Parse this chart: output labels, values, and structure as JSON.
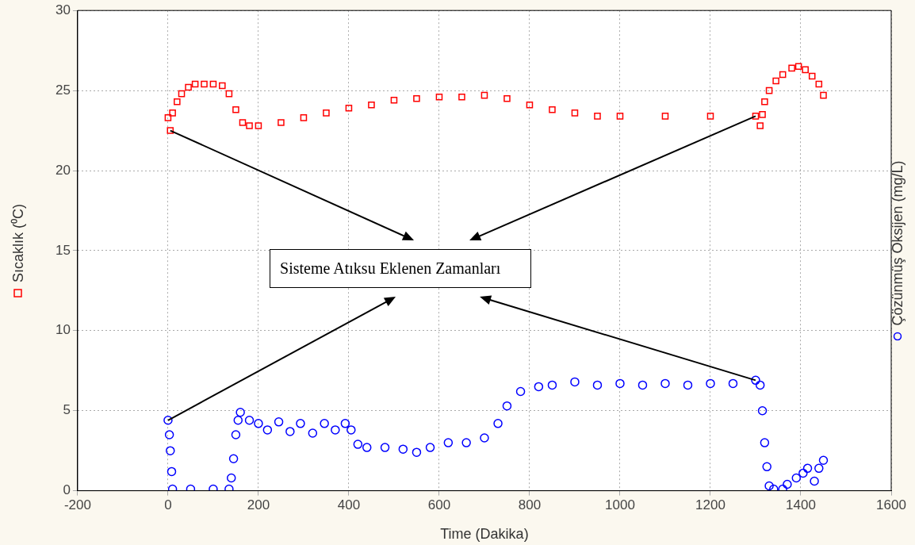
{
  "chart_data": {
    "type": "scatter",
    "xlabel": "Time (Dakika)",
    "ylabel": "Sıcaklık (⁰C)",
    "y2label": "Çözünmüş Oksijen (mg/L)",
    "annotations": [
      "Sisteme Atıksu Eklenen Zamanları"
    ],
    "xlim": [
      -200,
      1600
    ],
    "xticks": [
      -200,
      0,
      200,
      400,
      600,
      800,
      1000,
      1200,
      1400,
      1600
    ],
    "ylim": [
      0,
      30
    ],
    "yticks": [
      0,
      5,
      10,
      15,
      20,
      25,
      30
    ],
    "grid": true,
    "series": [
      {
        "color": "#ff0000",
        "marker": "square",
        "x": [
          0,
          5,
          10,
          20,
          30,
          45,
          60,
          80,
          100,
          120,
          135,
          150,
          165,
          180,
          200,
          250,
          300,
          350,
          400,
          450,
          500,
          550,
          600,
          650,
          700,
          750,
          800,
          850,
          900,
          950,
          1000,
          1100,
          1200,
          1300,
          1310,
          1315,
          1320,
          1330,
          1345,
          1360,
          1380,
          1395,
          1410,
          1425,
          1440,
          1450
        ],
        "values": [
          23.3,
          22.5,
          23.6,
          24.3,
          24.8,
          25.2,
          25.4,
          25.4,
          25.4,
          25.3,
          24.8,
          23.8,
          23.0,
          22.8,
          22.8,
          23.0,
          23.3,
          23.6,
          23.9,
          24.1,
          24.4,
          24.5,
          24.6,
          24.6,
          24.7,
          24.5,
          24.1,
          23.8,
          23.6,
          23.4,
          23.4,
          23.4,
          23.4,
          23.4,
          22.8,
          23.5,
          24.3,
          25.0,
          25.6,
          26.0,
          26.4,
          26.5,
          26.3,
          25.9,
          25.4,
          24.7
        ]
      },
      {
        "color": "#0000ff",
        "marker": "circle",
        "x": [
          0,
          3,
          5,
          8,
          10,
          50,
          100,
          135,
          140,
          145,
          150,
          155,
          160,
          180,
          200,
          220,
          245,
          270,
          293,
          320,
          346,
          370,
          392,
          405,
          420,
          440,
          480,
          520,
          550,
          580,
          620,
          660,
          700,
          730,
          750,
          780,
          820,
          850,
          900,
          950,
          1000,
          1050,
          1100,
          1150,
          1200,
          1250,
          1300,
          1310,
          1315,
          1320,
          1325,
          1330,
          1340,
          1360,
          1370,
          1390,
          1405,
          1415,
          1430,
          1440,
          1450
        ],
        "values": [
          4.4,
          3.5,
          2.5,
          1.2,
          0.1,
          0.1,
          0.1,
          0.1,
          0.8,
          2.0,
          3.5,
          4.4,
          4.9,
          4.4,
          4.2,
          3.8,
          4.3,
          3.7,
          4.2,
          3.6,
          4.2,
          3.8,
          4.2,
          3.8,
          2.9,
          2.7,
          2.7,
          2.6,
          2.4,
          2.7,
          3.0,
          3.0,
          3.3,
          4.2,
          5.3,
          6.2,
          6.5,
          6.6,
          6.8,
          6.6,
          6.7,
          6.6,
          6.7,
          6.6,
          6.7,
          6.7,
          6.9,
          6.6,
          5.0,
          3.0,
          1.5,
          0.3,
          0.1,
          0.1,
          0.4,
          0.8,
          1.1,
          1.4,
          0.6,
          1.4,
          1.9
        ]
      }
    ]
  }
}
